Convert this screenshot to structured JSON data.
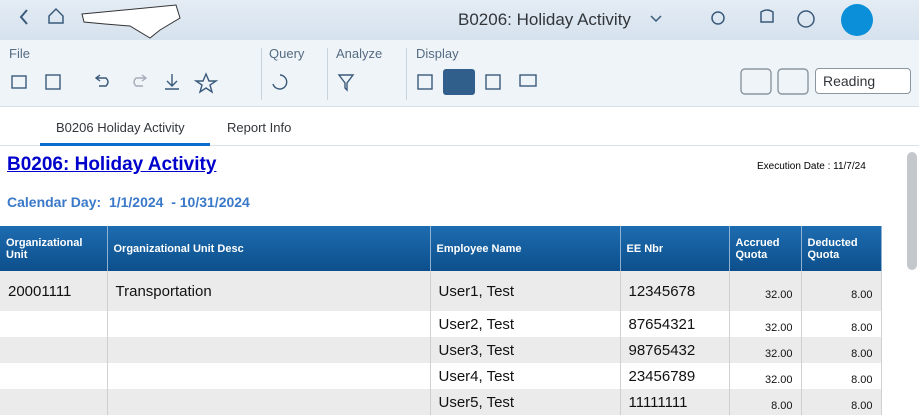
{
  "header": {
    "title": "B0206: Holiday Activity"
  },
  "toolbar": {
    "groups": [
      "File",
      "Query",
      "Analyze",
      "Display"
    ],
    "view_button": "Reading"
  },
  "tabs": [
    "B0206 Holiday Activity",
    "Report Info"
  ],
  "report": {
    "title": "B0206: Holiday Activity",
    "execution_date": "Execution Date : 11/7/24",
    "calendar_label": "Calendar Day:",
    "calendar_range": "1/1/2024  - 10/31/2024"
  },
  "table": {
    "columns": [
      "Organizational Unit",
      "Organizational Unit Desc",
      "Employee Name",
      "EE Nbr",
      "Accrued Quota",
      "Deducted Quota"
    ],
    "rows": [
      [
        "20001111",
        "Transportation",
        "User1, Test",
        "12345678",
        "32.00",
        "8.00"
      ],
      [
        null,
        null,
        "User2, Test",
        "87654321",
        "32.00",
        "8.00"
      ],
      [
        null,
        null,
        "User3, Test",
        "98765432",
        "32.00",
        "8.00"
      ],
      [
        null,
        null,
        "User4, Test",
        "23456789",
        "32.00",
        "8.00"
      ],
      [
        null,
        null,
        "User5, Test",
        "11111111",
        "8.00",
        "8.00"
      ]
    ]
  }
}
